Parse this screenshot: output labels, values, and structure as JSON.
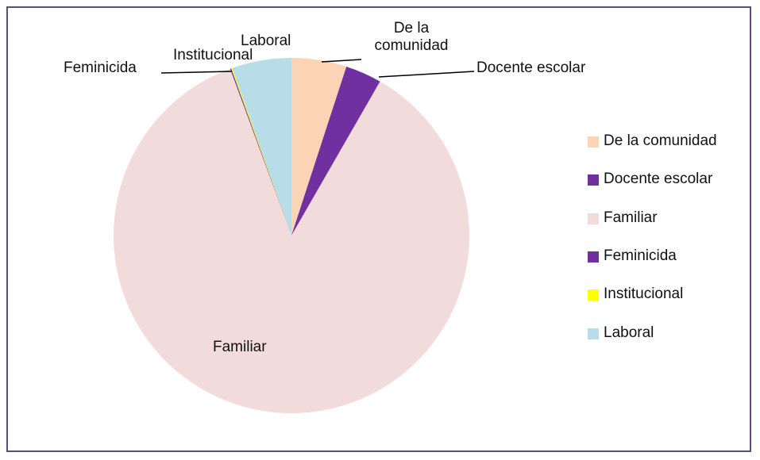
{
  "chart_data": {
    "type": "pie",
    "categories": [
      "De la comunidad",
      "Docente escolar",
      "Familiar",
      "Feminicida",
      "Institucional",
      "Laboral"
    ],
    "values": [
      5,
      3.3,
      86.1,
      0.1,
      0.1,
      5.4
    ],
    "colors": [
      "#fad4b4",
      "#7030a0",
      "#f2dcdb",
      "#7030a0",
      "#ffff00",
      "#b7dee8"
    ],
    "legend": "right"
  }
}
